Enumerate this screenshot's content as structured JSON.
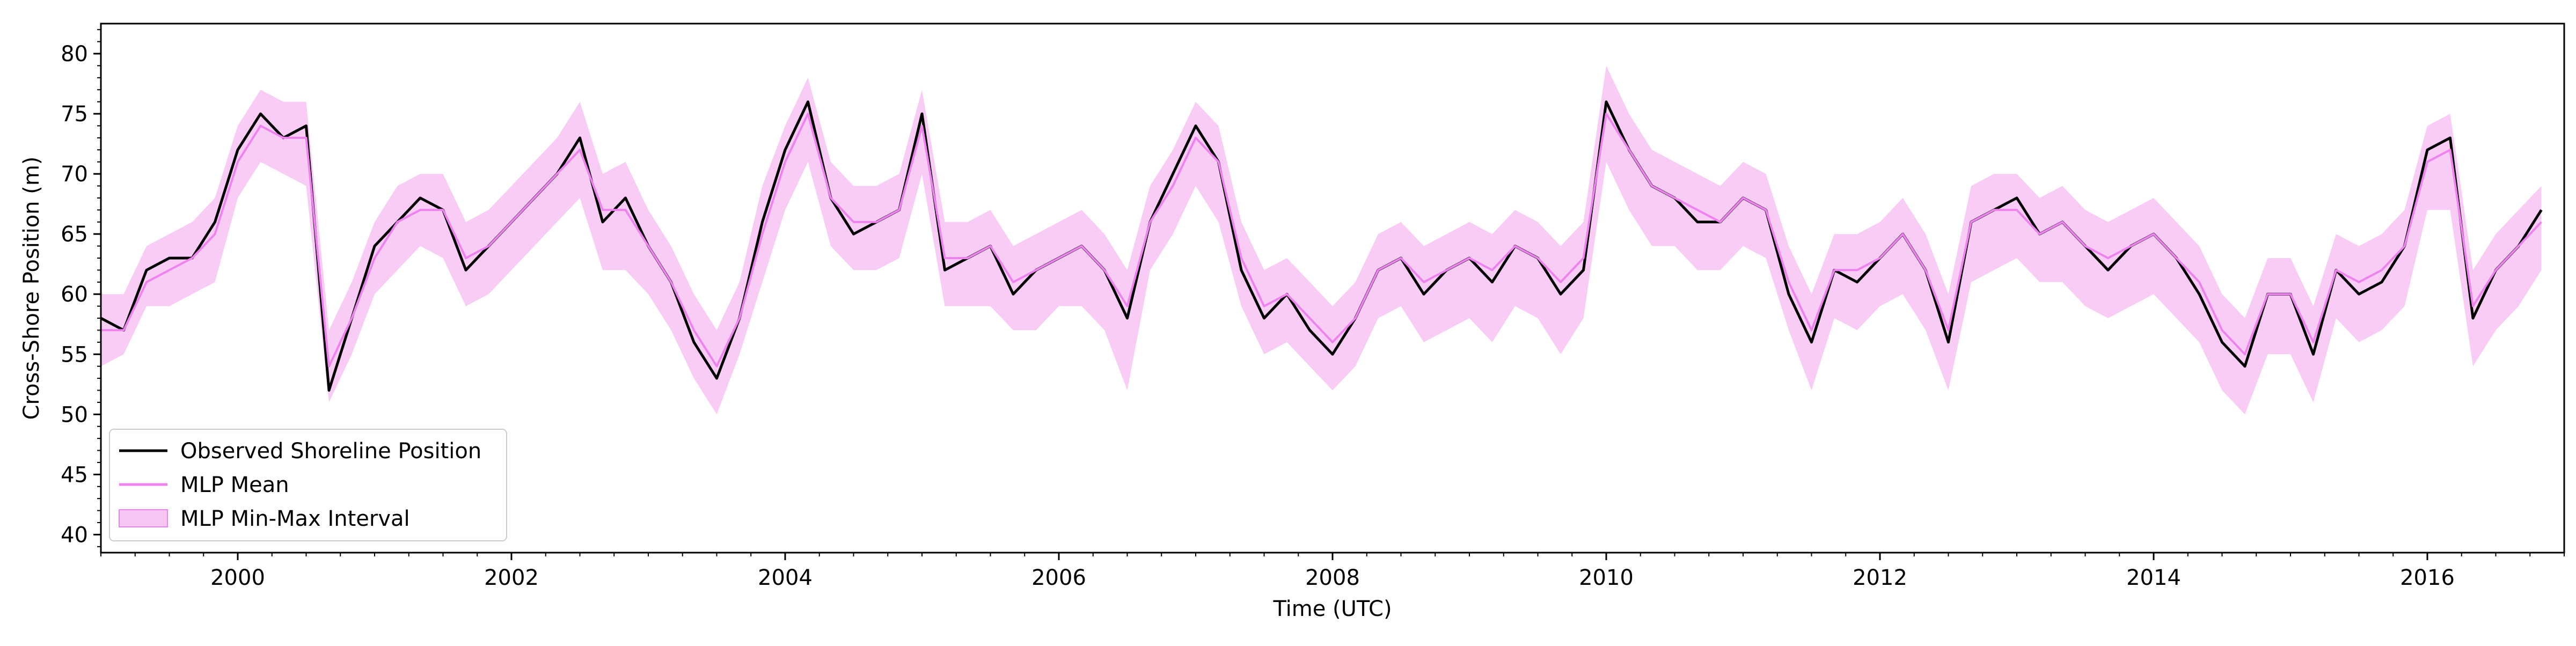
{
  "chart_data": {
    "type": "line",
    "xlabel": "Time (UTC)",
    "ylabel": "Cross-Shore Position (m)",
    "xlim": [
      "1999-01-01",
      "2017-01-01"
    ],
    "ylim": [
      38.5,
      82.5
    ],
    "x_ticks": [
      "2000",
      "2002",
      "2004",
      "2006",
      "2008",
      "2010",
      "2012",
      "2014",
      "2016"
    ],
    "y_ticks": [
      "40",
      "45",
      "50",
      "55",
      "60",
      "65",
      "70",
      "75",
      "80"
    ],
    "grid": false,
    "legend_position": "lower-left",
    "legend": [
      {
        "label": "Observed Shoreline Position",
        "kind": "line",
        "color": "#000000"
      },
      {
        "label": "MLP Mean",
        "kind": "line",
        "color": "#ee82ee"
      },
      {
        "label": "MLP Min-Max Interval",
        "kind": "patch",
        "color": "#f7c6f3"
      }
    ],
    "series": [
      {
        "name": "Observed Shoreline Position",
        "color": "#000000",
        "x": [
          "1999-01",
          "1999-03",
          "1999-05",
          "1999-07",
          "1999-09",
          "1999-11",
          "2000-01",
          "2000-03",
          "2000-05",
          "2000-07",
          "2000-09",
          "2000-11",
          "2001-01",
          "2001-03",
          "2001-05",
          "2001-07",
          "2001-09",
          "2001-11",
          "2002-01",
          "2002-03",
          "2002-05",
          "2002-07",
          "2002-09",
          "2002-11",
          "2003-01",
          "2003-03",
          "2003-05",
          "2003-07",
          "2003-09",
          "2003-11",
          "2004-01",
          "2004-03",
          "2004-05",
          "2004-07",
          "2004-09",
          "2004-11",
          "2005-01",
          "2005-03",
          "2005-05",
          "2005-07",
          "2005-09",
          "2005-11",
          "2006-01",
          "2006-03",
          "2006-05",
          "2006-07",
          "2006-09",
          "2006-11",
          "2007-01",
          "2007-03",
          "2007-05",
          "2007-07",
          "2007-09",
          "2007-11",
          "2008-01",
          "2008-03",
          "2008-05",
          "2008-07",
          "2008-09",
          "2008-11",
          "2009-01",
          "2009-03",
          "2009-05",
          "2009-07",
          "2009-09",
          "2009-11",
          "2010-01",
          "2010-03",
          "2010-05",
          "2010-07",
          "2010-09",
          "2010-11",
          "2011-01",
          "2011-03",
          "2011-05",
          "2011-07",
          "2011-09",
          "2011-11",
          "2012-01",
          "2012-03",
          "2012-05",
          "2012-07",
          "2012-09",
          "2012-11",
          "2013-01",
          "2013-03",
          "2013-05",
          "2013-07",
          "2013-09",
          "2013-11",
          "2014-01",
          "2014-03",
          "2014-05",
          "2014-07",
          "2014-09",
          "2014-11",
          "2015-01",
          "2015-03",
          "2015-05",
          "2015-07",
          "2015-09",
          "2015-11",
          "2016-01",
          "2016-03",
          "2016-05",
          "2016-07",
          "2016-09",
          "2016-11"
        ],
        "y": [
          58,
          57,
          62,
          63,
          63,
          66,
          72,
          75,
          73,
          74,
          52,
          58,
          64,
          66,
          68,
          67,
          62,
          64,
          66,
          68,
          70,
          73,
          66,
          68,
          64,
          61,
          56,
          53,
          58,
          66,
          72,
          76,
          68,
          65,
          66,
          67,
          75,
          62,
          63,
          64,
          60,
          62,
          63,
          64,
          62,
          58,
          66,
          70,
          74,
          71,
          62,
          58,
          60,
          57,
          55,
          58,
          62,
          63,
          60,
          62,
          63,
          61,
          64,
          63,
          60,
          62,
          76,
          72,
          69,
          68,
          66,
          66,
          68,
          67,
          60,
          56,
          62,
          61,
          63,
          65,
          62,
          56,
          66,
          67,
          68,
          65,
          66,
          64,
          62,
          64,
          65,
          63,
          60,
          56,
          54,
          60,
          60,
          55,
          62,
          60,
          61,
          64,
          72,
          73,
          58,
          62,
          64,
          67
        ]
      },
      {
        "name": "MLP Mean",
        "color": "#ee82ee",
        "x": [
          "1999-01",
          "1999-03",
          "1999-05",
          "1999-07",
          "1999-09",
          "1999-11",
          "2000-01",
          "2000-03",
          "2000-05",
          "2000-07",
          "2000-09",
          "2000-11",
          "2001-01",
          "2001-03",
          "2001-05",
          "2001-07",
          "2001-09",
          "2001-11",
          "2002-01",
          "2002-03",
          "2002-05",
          "2002-07",
          "2002-09",
          "2002-11",
          "2003-01",
          "2003-03",
          "2003-05",
          "2003-07",
          "2003-09",
          "2003-11",
          "2004-01",
          "2004-03",
          "2004-05",
          "2004-07",
          "2004-09",
          "2004-11",
          "2005-01",
          "2005-03",
          "2005-05",
          "2005-07",
          "2005-09",
          "2005-11",
          "2006-01",
          "2006-03",
          "2006-05",
          "2006-07",
          "2006-09",
          "2006-11",
          "2007-01",
          "2007-03",
          "2007-05",
          "2007-07",
          "2007-09",
          "2007-11",
          "2008-01",
          "2008-03",
          "2008-05",
          "2008-07",
          "2008-09",
          "2008-11",
          "2009-01",
          "2009-03",
          "2009-05",
          "2009-07",
          "2009-09",
          "2009-11",
          "2010-01",
          "2010-03",
          "2010-05",
          "2010-07",
          "2010-09",
          "2010-11",
          "2011-01",
          "2011-03",
          "2011-05",
          "2011-07",
          "2011-09",
          "2011-11",
          "2012-01",
          "2012-03",
          "2012-05",
          "2012-07",
          "2012-09",
          "2012-11",
          "2013-01",
          "2013-03",
          "2013-05",
          "2013-07",
          "2013-09",
          "2013-11",
          "2014-01",
          "2014-03",
          "2014-05",
          "2014-07",
          "2014-09",
          "2014-11",
          "2015-01",
          "2015-03",
          "2015-05",
          "2015-07",
          "2015-09",
          "2015-11",
          "2016-01",
          "2016-03",
          "2016-05",
          "2016-07",
          "2016-09",
          "2016-11"
        ],
        "y": [
          57,
          57,
          61,
          62,
          63,
          65,
          71,
          74,
          73,
          73,
          54,
          58,
          63,
          66,
          67,
          67,
          63,
          64,
          66,
          68,
          70,
          72,
          67,
          67,
          64,
          61,
          57,
          54,
          58,
          65,
          71,
          75,
          68,
          66,
          66,
          67,
          74,
          63,
          63,
          64,
          61,
          62,
          63,
          64,
          62,
          59,
          66,
          69,
          73,
          71,
          63,
          59,
          60,
          58,
          56,
          58,
          62,
          63,
          61,
          62,
          63,
          62,
          64,
          63,
          61,
          63,
          75,
          72,
          69,
          68,
          67,
          66,
          68,
          67,
          61,
          57,
          62,
          62,
          63,
          65,
          62,
          57,
          66,
          67,
          67,
          65,
          66,
          64,
          63,
          64,
          65,
          63,
          61,
          57,
          55,
          60,
          60,
          56,
          62,
          61,
          62,
          64,
          71,
          72,
          59,
          62,
          64,
          66
        ]
      }
    ],
    "interval": {
      "name": "MLP Min-Max Interval",
      "color": "#f7c6f3",
      "x": [
        "1999-01",
        "1999-03",
        "1999-05",
        "1999-07",
        "1999-09",
        "1999-11",
        "2000-01",
        "2000-03",
        "2000-05",
        "2000-07",
        "2000-09",
        "2000-11",
        "2001-01",
        "2001-03",
        "2001-05",
        "2001-07",
        "2001-09",
        "2001-11",
        "2002-01",
        "2002-03",
        "2002-05",
        "2002-07",
        "2002-09",
        "2002-11",
        "2003-01",
        "2003-03",
        "2003-05",
        "2003-07",
        "2003-09",
        "2003-11",
        "2004-01",
        "2004-03",
        "2004-05",
        "2004-07",
        "2004-09",
        "2004-11",
        "2005-01",
        "2005-03",
        "2005-05",
        "2005-07",
        "2005-09",
        "2005-11",
        "2006-01",
        "2006-03",
        "2006-05",
        "2006-07",
        "2006-09",
        "2006-11",
        "2007-01",
        "2007-03",
        "2007-05",
        "2007-07",
        "2007-09",
        "2007-11",
        "2008-01",
        "2008-03",
        "2008-05",
        "2008-07",
        "2008-09",
        "2008-11",
        "2009-01",
        "2009-03",
        "2009-05",
        "2009-07",
        "2009-09",
        "2009-11",
        "2010-01",
        "2010-03",
        "2010-05",
        "2010-07",
        "2010-09",
        "2010-11",
        "2011-01",
        "2011-03",
        "2011-05",
        "2011-07",
        "2011-09",
        "2011-11",
        "2012-01",
        "2012-03",
        "2012-05",
        "2012-07",
        "2012-09",
        "2012-11",
        "2013-01",
        "2013-03",
        "2013-05",
        "2013-07",
        "2013-09",
        "2013-11",
        "2014-01",
        "2014-03",
        "2014-05",
        "2014-07",
        "2014-09",
        "2014-11",
        "2015-01",
        "2015-03",
        "2015-05",
        "2015-07",
        "2015-09",
        "2015-11",
        "2016-01",
        "2016-03",
        "2016-05",
        "2016-07",
        "2016-09",
        "2016-11"
      ],
      "low": [
        54,
        55,
        59,
        59,
        60,
        61,
        68,
        71,
        70,
        69,
        51,
        55,
        60,
        62,
        64,
        63,
        59,
        60,
        62,
        64,
        66,
        68,
        62,
        62,
        60,
        57,
        53,
        50,
        55,
        61,
        67,
        71,
        64,
        62,
        62,
        63,
        70,
        59,
        59,
        59,
        57,
        57,
        59,
        59,
        57,
        52,
        62,
        65,
        69,
        66,
        59,
        55,
        56,
        54,
        52,
        54,
        58,
        59,
        56,
        57,
        58,
        56,
        59,
        58,
        55,
        58,
        71,
        67,
        64,
        64,
        62,
        62,
        64,
        63,
        57,
        52,
        58,
        57,
        59,
        60,
        57,
        52,
        61,
        62,
        63,
        61,
        61,
        59,
        58,
        59,
        60,
        58,
        56,
        52,
        50,
        55,
        55,
        51,
        58,
        56,
        57,
        59,
        67,
        67,
        54,
        57,
        59,
        62
      ],
      "high": [
        60,
        60,
        64,
        65,
        66,
        68,
        74,
        77,
        76,
        76,
        57,
        61,
        66,
        69,
        70,
        70,
        66,
        67,
        69,
        71,
        73,
        76,
        70,
        71,
        67,
        64,
        60,
        57,
        61,
        69,
        74,
        78,
        71,
        69,
        69,
        70,
        77,
        66,
        66,
        67,
        64,
        65,
        66,
        67,
        65,
        62,
        69,
        72,
        76,
        74,
        66,
        62,
        63,
        61,
        59,
        61,
        65,
        66,
        64,
        65,
        66,
        65,
        67,
        66,
        64,
        66,
        79,
        75,
        72,
        71,
        70,
        69,
        71,
        70,
        64,
        60,
        65,
        65,
        66,
        68,
        65,
        60,
        69,
        70,
        70,
        68,
        69,
        67,
        66,
        67,
        68,
        66,
        64,
        60,
        58,
        63,
        63,
        59,
        65,
        64,
        65,
        67,
        74,
        75,
        62,
        65,
        67,
        69
      ]
    }
  }
}
